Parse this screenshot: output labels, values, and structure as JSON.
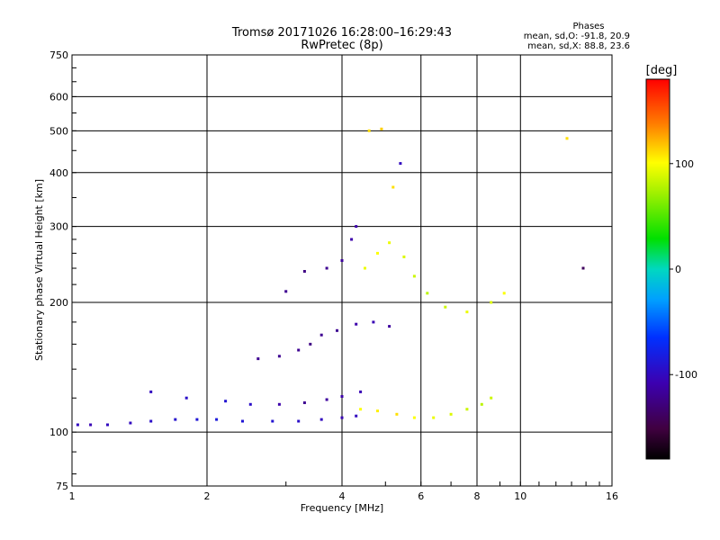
{
  "chart_data": {
    "type": "scatter",
    "title": "Tromsø 20171026 16:28:00–16:29:43",
    "subtitle": "RwPretec (8p)",
    "xlabel": "Frequency [MHz]",
    "ylabel": "Stationary phase Virtual Height [km]",
    "x_scale": "log",
    "y_scale": "log",
    "xlim": [
      1,
      16
    ],
    "ylim": [
      75,
      750
    ],
    "x_ticks": [
      "1",
      "2",
      "4",
      "6",
      "8",
      "10",
      "16"
    ],
    "y_ticks": [
      "75",
      "100",
      "200",
      "300",
      "400",
      "500",
      "600",
      "750"
    ],
    "grid": true,
    "phase_stats": {
      "title": "Phases",
      "line1": "mean, sd,O: -91.8, 20.9",
      "line2": "mean, sd,X:  88.8, 23.6"
    },
    "colorbar": {
      "label": "[deg]",
      "ticks": [
        "100",
        "0",
        "-100"
      ],
      "range": [
        -180,
        180
      ]
    },
    "series": [
      {
        "values": [
          [
            1.03,
            104,
            -100
          ],
          [
            1.1,
            104,
            -105
          ],
          [
            1.2,
            104,
            -100
          ],
          [
            1.35,
            105,
            -100
          ],
          [
            1.5,
            106,
            -95
          ],
          [
            1.7,
            107,
            -92
          ],
          [
            1.9,
            107,
            -88
          ],
          [
            2.1,
            107,
            -85
          ],
          [
            2.4,
            106,
            -88
          ],
          [
            2.8,
            106,
            -90
          ],
          [
            3.2,
            106,
            -95
          ],
          [
            3.6,
            107,
            -100
          ],
          [
            4.0,
            108,
            -105
          ],
          [
            4.3,
            109,
            -100
          ]
        ]
      },
      {
        "values": [
          [
            1.5,
            124,
            -100
          ],
          [
            1.8,
            120,
            -95
          ],
          [
            2.2,
            118,
            -90
          ],
          [
            2.5,
            116,
            -95
          ],
          [
            2.9,
            116,
            -110
          ],
          [
            3.3,
            117,
            -120
          ],
          [
            3.7,
            119,
            -115
          ],
          [
            4.0,
            121,
            -110
          ],
          [
            4.4,
            124,
            -105
          ]
        ]
      },
      {
        "values": [
          [
            2.6,
            148,
            -120
          ],
          [
            2.9,
            150,
            -120
          ],
          [
            3.2,
            155,
            -120
          ],
          [
            3.4,
            160,
            -125
          ],
          [
            3.6,
            168,
            -120
          ],
          [
            3.9,
            172,
            -120
          ],
          [
            4.3,
            178,
            -110
          ],
          [
            4.7,
            180,
            -105
          ],
          [
            5.1,
            176,
            -115
          ]
        ]
      },
      {
        "values": [
          [
            3.0,
            212,
            -120
          ],
          [
            3.3,
            236,
            -125
          ],
          [
            3.7,
            240,
            -120
          ],
          [
            4.0,
            250,
            -115
          ],
          [
            4.2,
            280,
            -110
          ],
          [
            4.3,
            300,
            -110
          ]
        ]
      },
      {
        "values": [
          [
            4.4,
            113,
            100
          ],
          [
            4.8,
            112,
            105
          ],
          [
            5.3,
            110,
            110
          ],
          [
            5.8,
            108,
            100
          ],
          [
            6.4,
            108,
            95
          ],
          [
            7.0,
            110,
            90
          ],
          [
            7.6,
            113,
            85
          ],
          [
            8.2,
            116,
            80
          ],
          [
            8.6,
            120,
            85
          ]
        ]
      },
      {
        "values": [
          [
            4.5,
            240,
            95
          ],
          [
            4.8,
            260,
            100
          ],
          [
            5.1,
            275,
            95
          ],
          [
            5.5,
            255,
            90
          ],
          [
            5.8,
            230,
            85
          ],
          [
            6.2,
            210,
            80
          ],
          [
            6.8,
            195,
            85
          ],
          [
            7.6,
            190,
            95
          ],
          [
            8.6,
            200,
            90
          ],
          [
            9.2,
            210,
            100
          ]
        ]
      },
      {
        "values": [
          [
            4.6,
            500,
            110
          ],
          [
            4.9,
            505,
            115
          ],
          [
            5.2,
            370,
            110
          ],
          [
            5.4,
            420,
            -100
          ],
          [
            12.7,
            480,
            110
          ],
          [
            13.8,
            240,
            -140
          ]
        ]
      }
    ]
  }
}
